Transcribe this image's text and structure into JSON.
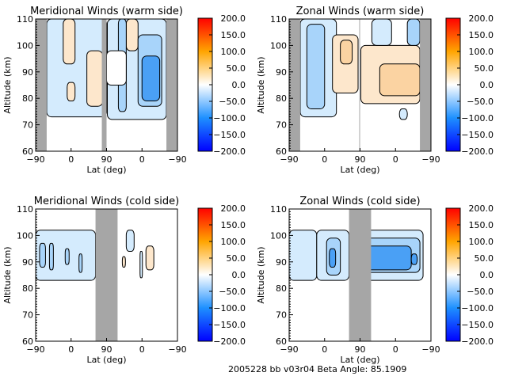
{
  "footer": {
    "text": "2005228 bb v03r04   Beta Angle: 85.1909"
  },
  "colorbar": {
    "ticks": [
      "200.0",
      "150.0",
      "100.0",
      "50.0",
      "0.0",
      "-50.0",
      "-100.0",
      "-150.0",
      "-200.0"
    ],
    "range": [
      -200,
      200
    ],
    "colors": {
      "min": "#0000ff",
      "neg": "#1e90ff",
      "zero": "#ffffff",
      "pos": "#ffa500",
      "max": "#ff0000"
    },
    "fill_levels": {
      "-150": "#1a6cf0",
      "-100": "#4aa0f5",
      "-50": "#a8d4fa",
      "-25": "#d4ebfd",
      "25": "#fde7cc",
      "50": "#fbd3a2",
      "100": "#f7ad60"
    }
  },
  "chart_data": [
    {
      "id": "meridional-warm",
      "type": "heatmap",
      "title": "Meridional Winds (warm side)",
      "xlabel": "Lat (deg)",
      "ylabel": "Altitude (km)",
      "xticks": [
        "-90",
        "0",
        "90",
        "0",
        "-90"
      ],
      "yticks": [
        "60",
        "70",
        "80",
        "90",
        "100",
        "110"
      ],
      "ylim": [
        60,
        110
      ],
      "x_segments": "ascending -90..90 then descending 90..-90",
      "no_data_x": [
        [
          -90,
          -62
        ],
        [
          78,
          90
        ],
        [
          -62,
          -90
        ]
      ],
      "regions": [
        {
          "x": [
            -62,
            90
          ],
          "y": [
            73,
            110
          ],
          "level": -25
        },
        {
          "x": [
            88,
            -62
          ],
          "y": [
            72,
            110
          ],
          "level": -25
        },
        {
          "x": [
            -20,
            10
          ],
          "y": [
            93,
            110
          ],
          "level": 25
        },
        {
          "x": [
            40,
            80
          ],
          "y": [
            77,
            98
          ],
          "level": 25
        },
        {
          "x": [
            -10,
            10
          ],
          "y": [
            79,
            86
          ],
          "level": 25
        },
        {
          "x": [
            40,
            10
          ],
          "y": [
            98,
            110
          ],
          "level": 25
        },
        {
          "x": [
            10,
            -50
          ],
          "y": [
            77,
            104
          ],
          "level": -50
        },
        {
          "x": [
            0,
            -45
          ],
          "y": [
            79,
            96
          ],
          "level": -100
        },
        {
          "x": [
            60,
            40
          ],
          "y": [
            75,
            110
          ],
          "level": -50
        },
        {
          "x": [
            90,
            40
          ],
          "y": [
            85,
            98
          ],
          "level": 0
        }
      ]
    },
    {
      "id": "zonal-warm",
      "type": "heatmap",
      "title": "Zonal Winds (warm side)",
      "xlabel": "Lat (deg)",
      "ylabel": "Altitude (km)",
      "xticks": [
        "-90",
        "0",
        "90",
        "0",
        "-90"
      ],
      "yticks": [
        "60",
        "70",
        "80",
        "90",
        "100",
        "110"
      ],
      "ylim": [
        60,
        110
      ],
      "no_data_x": [
        [
          -90,
          -62
        ],
        [
          88,
          90
        ],
        [
          -62,
          -90
        ]
      ],
      "regions": [
        {
          "x": [
            -62,
            30
          ],
          "y": [
            73,
            110
          ],
          "level": -25
        },
        {
          "x": [
            -45,
            0
          ],
          "y": [
            76,
            108
          ],
          "level": -50
        },
        {
          "x": [
            20,
            85
          ],
          "y": [
            82,
            104
          ],
          "level": 25
        },
        {
          "x": [
            40,
            70
          ],
          "y": [
            93,
            102
          ],
          "level": 50
        },
        {
          "x": [
            88,
            -62
          ],
          "y": [
            78,
            100
          ],
          "level": 25
        },
        {
          "x": [
            40,
            -62
          ],
          "y": [
            81,
            93
          ],
          "level": 50
        },
        {
          "x": [
            60,
            10
          ],
          "y": [
            100,
            110
          ],
          "level": -25
        },
        {
          "x": [
            -10,
            -30
          ],
          "y": [
            72,
            76
          ],
          "level": -25
        },
        {
          "x": [
            -30,
            -62
          ],
          "y": [
            100,
            110
          ],
          "level": -50
        }
      ]
    },
    {
      "id": "meridional-cold",
      "type": "heatmap",
      "title": "Meridional Winds (cold side)",
      "xlabel": "Lat (deg)",
      "ylabel": "Altitude (km)",
      "xticks": [
        "-90",
        "0",
        "90",
        "0",
        "-90"
      ],
      "yticks": [
        "60",
        "70",
        "80",
        "90",
        "100",
        "110"
      ],
      "ylim": [
        60,
        110
      ],
      "no_data_x": [
        [
          62,
          90
        ],
        [
          90,
          62
        ]
      ],
      "regions": [
        {
          "x": [
            -90,
            62
          ],
          "y": [
            83,
            102
          ],
          "level": -25
        },
        {
          "x": [
            -80,
            -65
          ],
          "y": [
            88,
            97
          ],
          "level": -50
        },
        {
          "x": [
            -55,
            -45
          ],
          "y": [
            87,
            97
          ],
          "level": -50
        },
        {
          "x": [
            -15,
            -5
          ],
          "y": [
            89,
            95
          ],
          "level": -50
        },
        {
          "x": [
            20,
            28
          ],
          "y": [
            86,
            93
          ],
          "level": -50
        },
        {
          "x": [
            40,
            20
          ],
          "y": [
            94,
            102
          ],
          "level": -25
        },
        {
          "x": [
            5,
            0
          ],
          "y": [
            84,
            94
          ],
          "level": -25
        },
        {
          "x": [
            50,
            42
          ],
          "y": [
            88,
            92
          ],
          "level": 25
        },
        {
          "x": [
            -10,
            -30
          ],
          "y": [
            87,
            96
          ],
          "level": 25
        }
      ]
    },
    {
      "id": "zonal-cold",
      "type": "heatmap",
      "title": "Zonal Winds (cold side)",
      "xlabel": "Lat (deg)",
      "ylabel": "Altitude (km)",
      "xticks": [
        "-90",
        "0",
        "90",
        "0",
        "-90"
      ],
      "yticks": [
        "60",
        "70",
        "80",
        "90",
        "100",
        "110"
      ],
      "ylim": [
        60,
        110
      ],
      "no_data_x": [
        [
          62,
          90
        ],
        [
          90,
          62
        ]
      ],
      "regions": [
        {
          "x": [
            -90,
            -20
          ],
          "y": [
            83,
            102
          ],
          "level": -25
        },
        {
          "x": [
            -20,
            62
          ],
          "y": [
            83,
            102
          ],
          "level": -25
        },
        {
          "x": [
            5,
            40
          ],
          "y": [
            85,
            99
          ],
          "level": -50
        },
        {
          "x": [
            12,
            28
          ],
          "y": [
            88,
            95
          ],
          "level": -100
        },
        {
          "x": [
            88,
            -70
          ],
          "y": [
            83,
            102
          ],
          "level": -25
        },
        {
          "x": [
            80,
            -62
          ],
          "y": [
            86,
            99
          ],
          "level": -50
        },
        {
          "x": [
            75,
            -40
          ],
          "y": [
            87,
            96
          ],
          "level": -100
        },
        {
          "x": [
            -40,
            -55
          ],
          "y": [
            89,
            93
          ],
          "level": -100
        }
      ]
    }
  ]
}
